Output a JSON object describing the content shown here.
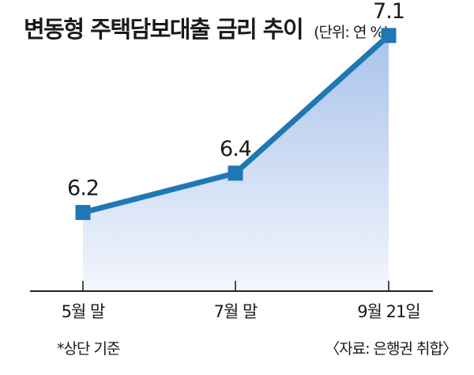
{
  "title": "변동형 주택담보대출 금리 추이",
  "unit": "(단위: 연 %)",
  "footnote": "*상단 기준",
  "source": "〈자료: 은행권 취합〉",
  "colors": {
    "line": "#1f78b4",
    "fill_top": "#a9c3ea",
    "fill_bottom": "#f3f6fd",
    "axis": "#222222"
  },
  "chart_data": {
    "type": "line",
    "categories": [
      "5월 말",
      "7월 말",
      "9월 21일"
    ],
    "values": [
      6.2,
      6.4,
      7.1
    ],
    "data_labels": [
      "6.2",
      "6.4",
      "7.1"
    ],
    "ylim": [
      5.8,
      7.2
    ],
    "marker": "square",
    "area_fill": true,
    "grid": false
  }
}
